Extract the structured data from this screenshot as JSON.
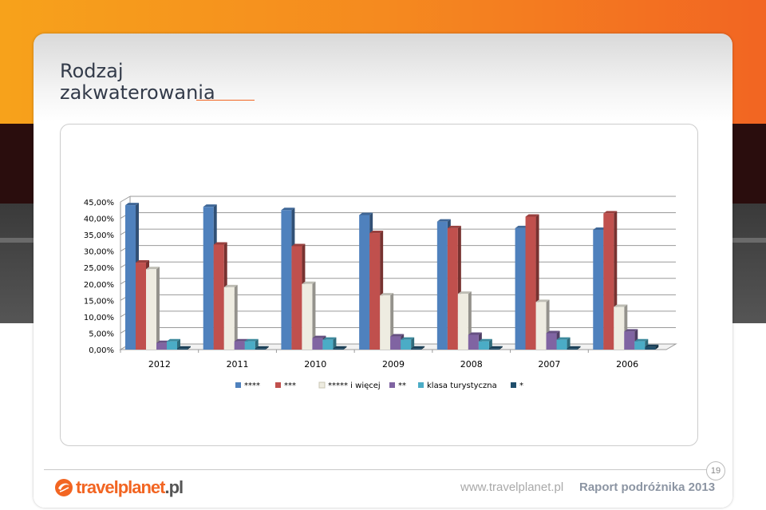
{
  "slide": {
    "title_line1": "Rodzaj",
    "title_line2": "zakwaterowania",
    "page_number": "19",
    "logo_main": "travelplanet",
    "logo_suffix": ".pl",
    "footer_url": "www.travelplanet.pl",
    "footer_report": "Raport podróżnika 2013"
  },
  "colors": {
    "accent_orange": "#f26522",
    "top_gradient_start": "#f7a21b"
  },
  "chart_data": {
    "type": "bar",
    "title": "",
    "xlabel": "",
    "ylabel": "",
    "ylim": [
      0,
      45
    ],
    "y_ticks": [
      "0,00%",
      "5,00%",
      "10,00%",
      "15,00%",
      "20,00%",
      "25,00%",
      "30,00%",
      "35,00%",
      "40,00%",
      "45,00%"
    ],
    "grid": true,
    "legend_position": "bottom",
    "categories": [
      "2012",
      "2011",
      "2010",
      "2009",
      "2008",
      "2007",
      "2006"
    ],
    "series": [
      {
        "name": "****",
        "color": "#4f81bd",
        "values": [
          44.0,
          43.5,
          42.5,
          41.0,
          39.0,
          37.0,
          36.5
        ]
      },
      {
        "name": "***",
        "color": "#c0504d",
        "values": [
          26.5,
          32.0,
          31.5,
          35.5,
          37.0,
          40.5,
          41.5
        ]
      },
      {
        "name": "***** i więcej",
        "color": "#eeece1",
        "values": [
          24.5,
          19.0,
          20.0,
          16.5,
          17.0,
          14.5,
          13.0
        ]
      },
      {
        "name": "**",
        "color": "#8064a2",
        "values": [
          2.0,
          2.5,
          3.5,
          4.0,
          4.5,
          5.0,
          5.5
        ]
      },
      {
        "name": "klasa turystyczna",
        "color": "#4bacc6",
        "values": [
          2.5,
          2.5,
          3.0,
          3.0,
          2.5,
          3.0,
          2.5
        ]
      },
      {
        "name": "*",
        "color": "#1f4e6b",
        "values": [
          0.3,
          0.3,
          0.3,
          0.3,
          0.3,
          0.3,
          0.8
        ]
      }
    ]
  }
}
